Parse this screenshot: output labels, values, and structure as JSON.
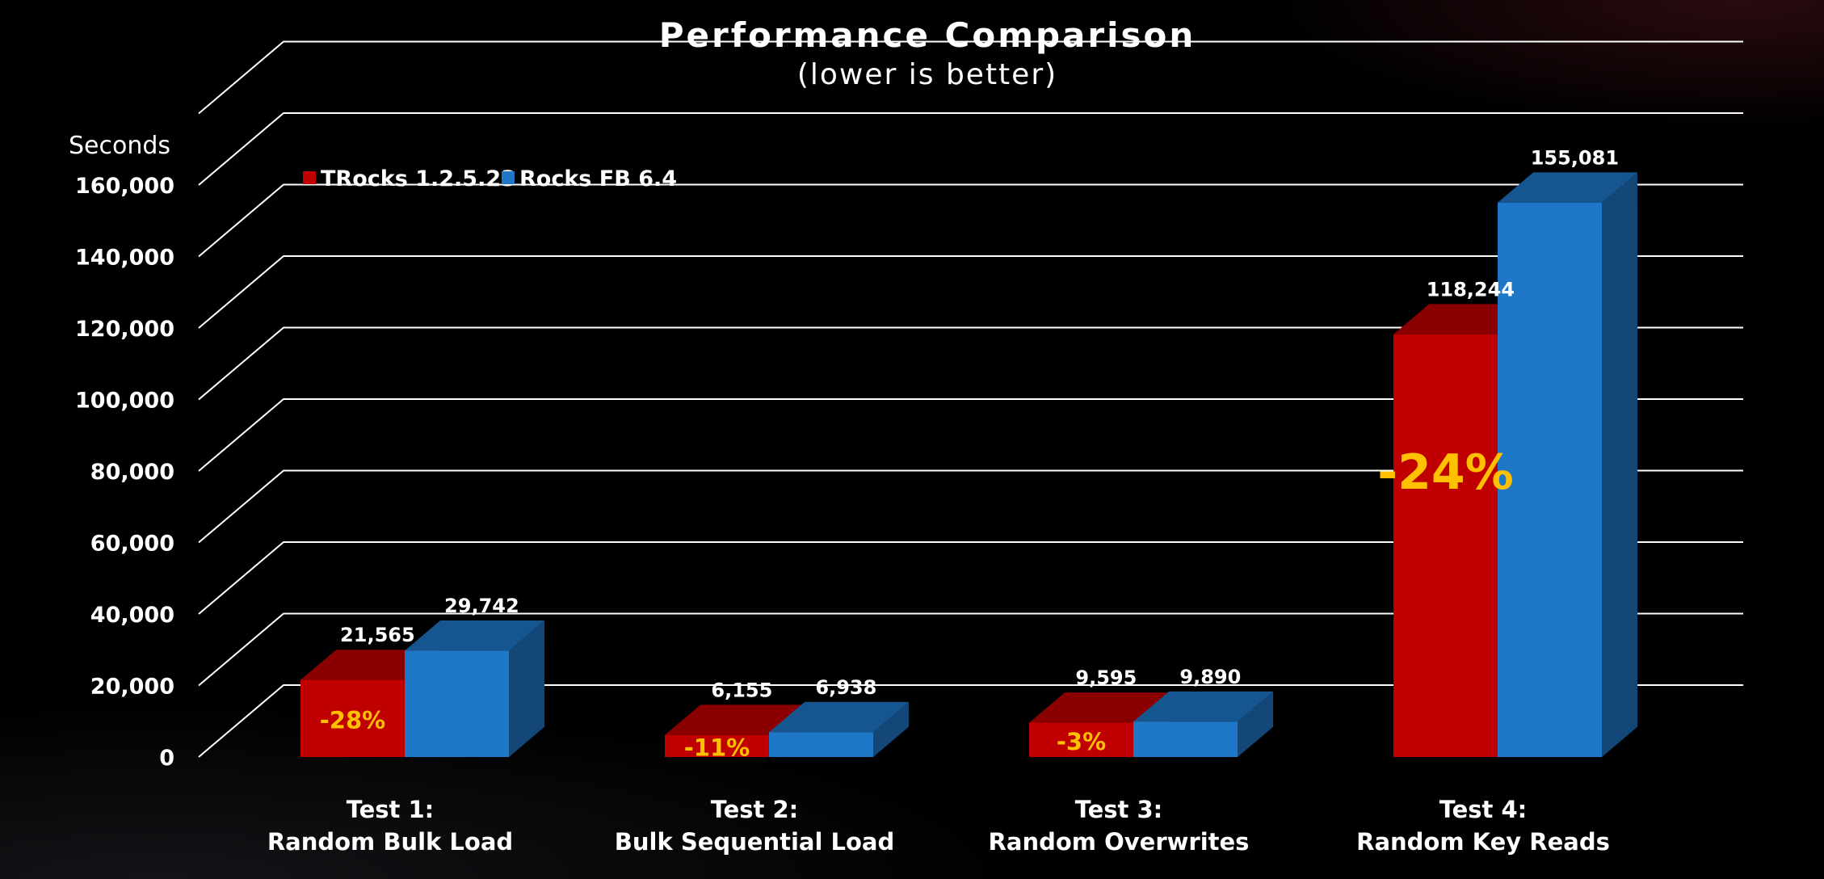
{
  "chart_data": {
    "type": "bar",
    "title": "Performance Comparison",
    "subtitle": "(lower is better)",
    "ylabel": "Seconds",
    "ylim": [
      0,
      170000
    ],
    "yticks": [
      "0",
      "20,000",
      "40,000",
      "60,000",
      "80,000",
      "100,000",
      "120,000",
      "140,000",
      "160,000"
    ],
    "grid": true,
    "legend_position": "top-left",
    "categories": [
      [
        "Test 1:",
        "Random Bulk Load"
      ],
      [
        "Test 2:",
        "Bulk Sequential Load"
      ],
      [
        "Test 3:",
        "Random Overwrites"
      ],
      [
        "Test 4:",
        "Random Key Reads"
      ]
    ],
    "series": [
      {
        "name": "TRocks 1.2.5.23",
        "color": "#c00000",
        "values": [
          21565,
          6155,
          9595,
          118244
        ],
        "labels": [
          "21,565",
          "6,155",
          "9,595",
          "118,244"
        ]
      },
      {
        "name": "Rocks FB 6.4",
        "color": "#1f77c8",
        "values": [
          29742,
          6938,
          9890,
          155081
        ],
        "labels": [
          "29,742",
          "6,938",
          "9,890",
          "155,081"
        ]
      }
    ],
    "annotations": [
      "-28%",
      "-11%",
      "-3%",
      "-24%"
    ],
    "annotation_color": "#ffc000"
  }
}
